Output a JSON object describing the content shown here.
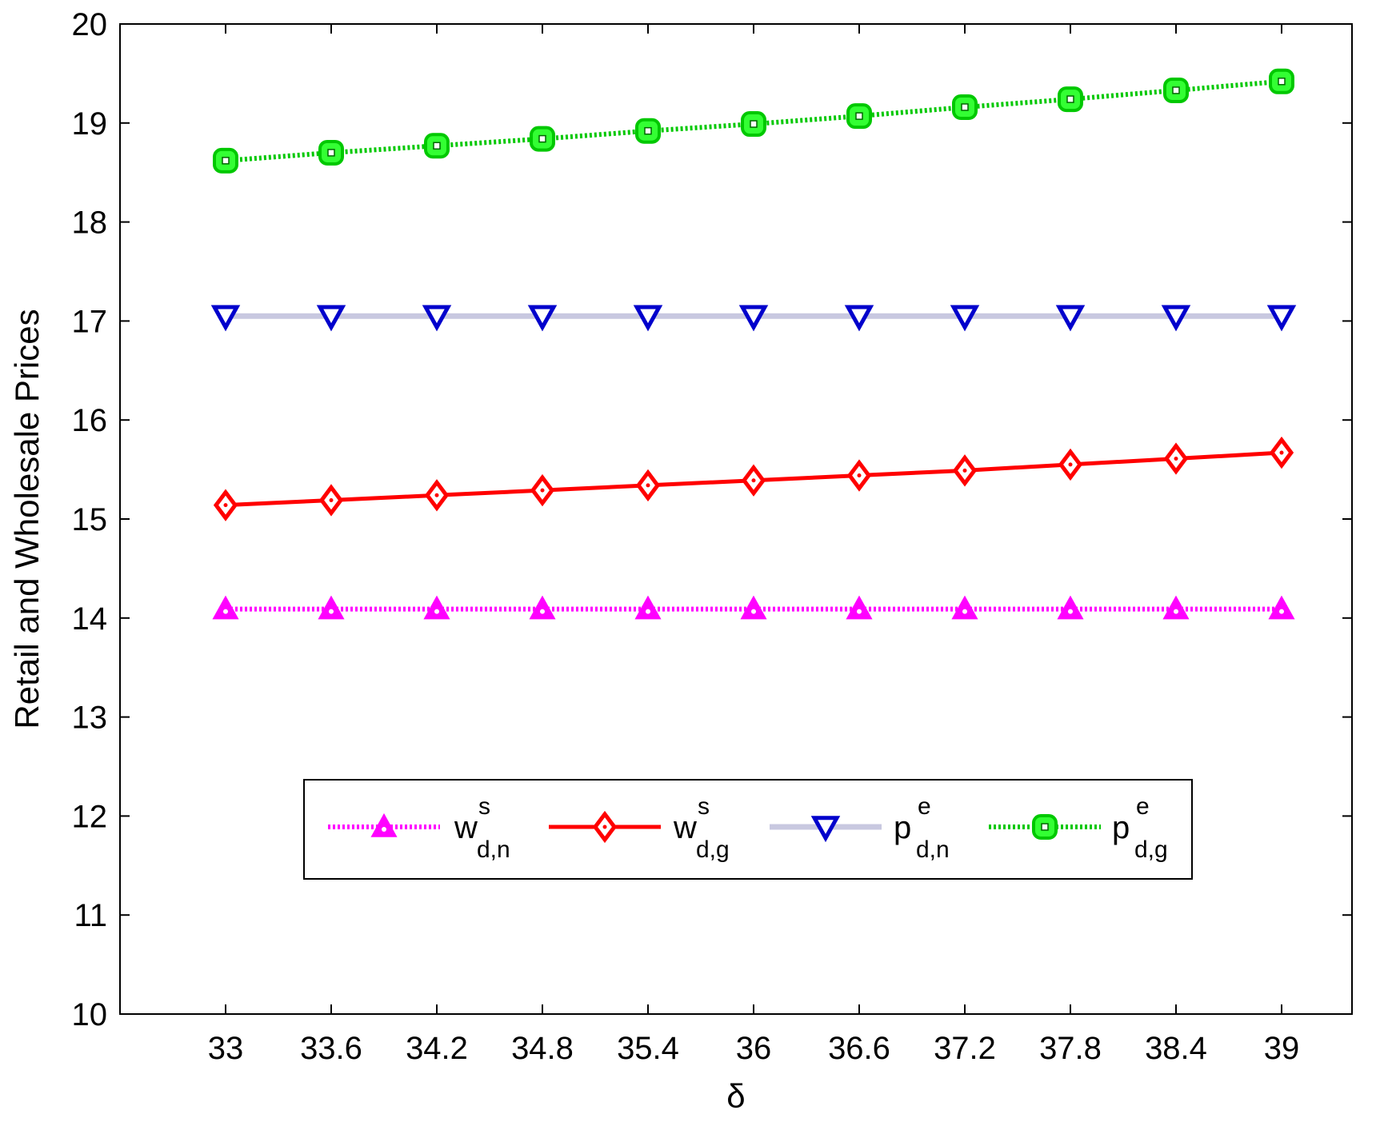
{
  "chart_data": {
    "type": "line",
    "title": "",
    "xlabel": "δ",
    "ylabel": "Retail and Wholesale Prices",
    "x": [
      33,
      33.6,
      34.2,
      34.8,
      35.4,
      36,
      36.6,
      37.2,
      37.8,
      38.4,
      39
    ],
    "x_tick_labels": [
      "33",
      "33.6",
      "34.2",
      "34.8",
      "35.4",
      "36",
      "36.6",
      "37.2",
      "37.8",
      "38.4",
      "39"
    ],
    "xlim": [
      32.4,
      39.4
    ],
    "ylim": [
      10,
      20
    ],
    "y_tick_labels": [
      "10",
      "11",
      "12",
      "13",
      "14",
      "15",
      "16",
      "17",
      "18",
      "19",
      "20"
    ],
    "grid": false,
    "legend_position": "bottom-center",
    "series": [
      {
        "name": "w",
        "superscript": "s",
        "subscript": "d,n",
        "color": "#ff00ff",
        "line_style": "dotted",
        "marker": "triangle-up",
        "values": [
          14.09,
          14.09,
          14.09,
          14.09,
          14.09,
          14.09,
          14.09,
          14.09,
          14.09,
          14.09,
          14.09
        ]
      },
      {
        "name": "w",
        "superscript": "s",
        "subscript": "d,g",
        "color": "#ff0000",
        "line_style": "solid",
        "marker": "diamond",
        "values": [
          15.14,
          15.19,
          15.24,
          15.29,
          15.34,
          15.39,
          15.44,
          15.49,
          15.55,
          15.61,
          15.67
        ]
      },
      {
        "name": "p",
        "superscript": "e",
        "subscript": "d,n",
        "color": "#0000cc",
        "line_color": "#c8c8e0",
        "line_style": "solid",
        "marker": "triangle-down",
        "values": [
          17.05,
          17.05,
          17.05,
          17.05,
          17.05,
          17.05,
          17.05,
          17.05,
          17.05,
          17.05,
          17.05
        ]
      },
      {
        "name": "p",
        "superscript": "e",
        "subscript": "d,g",
        "color": "#00c800",
        "marker_fill": "#33ff33",
        "line_style": "dotted",
        "marker": "square",
        "values": [
          18.62,
          18.7,
          18.77,
          18.84,
          18.92,
          18.99,
          19.07,
          19.16,
          19.24,
          19.33,
          19.42
        ]
      }
    ]
  }
}
